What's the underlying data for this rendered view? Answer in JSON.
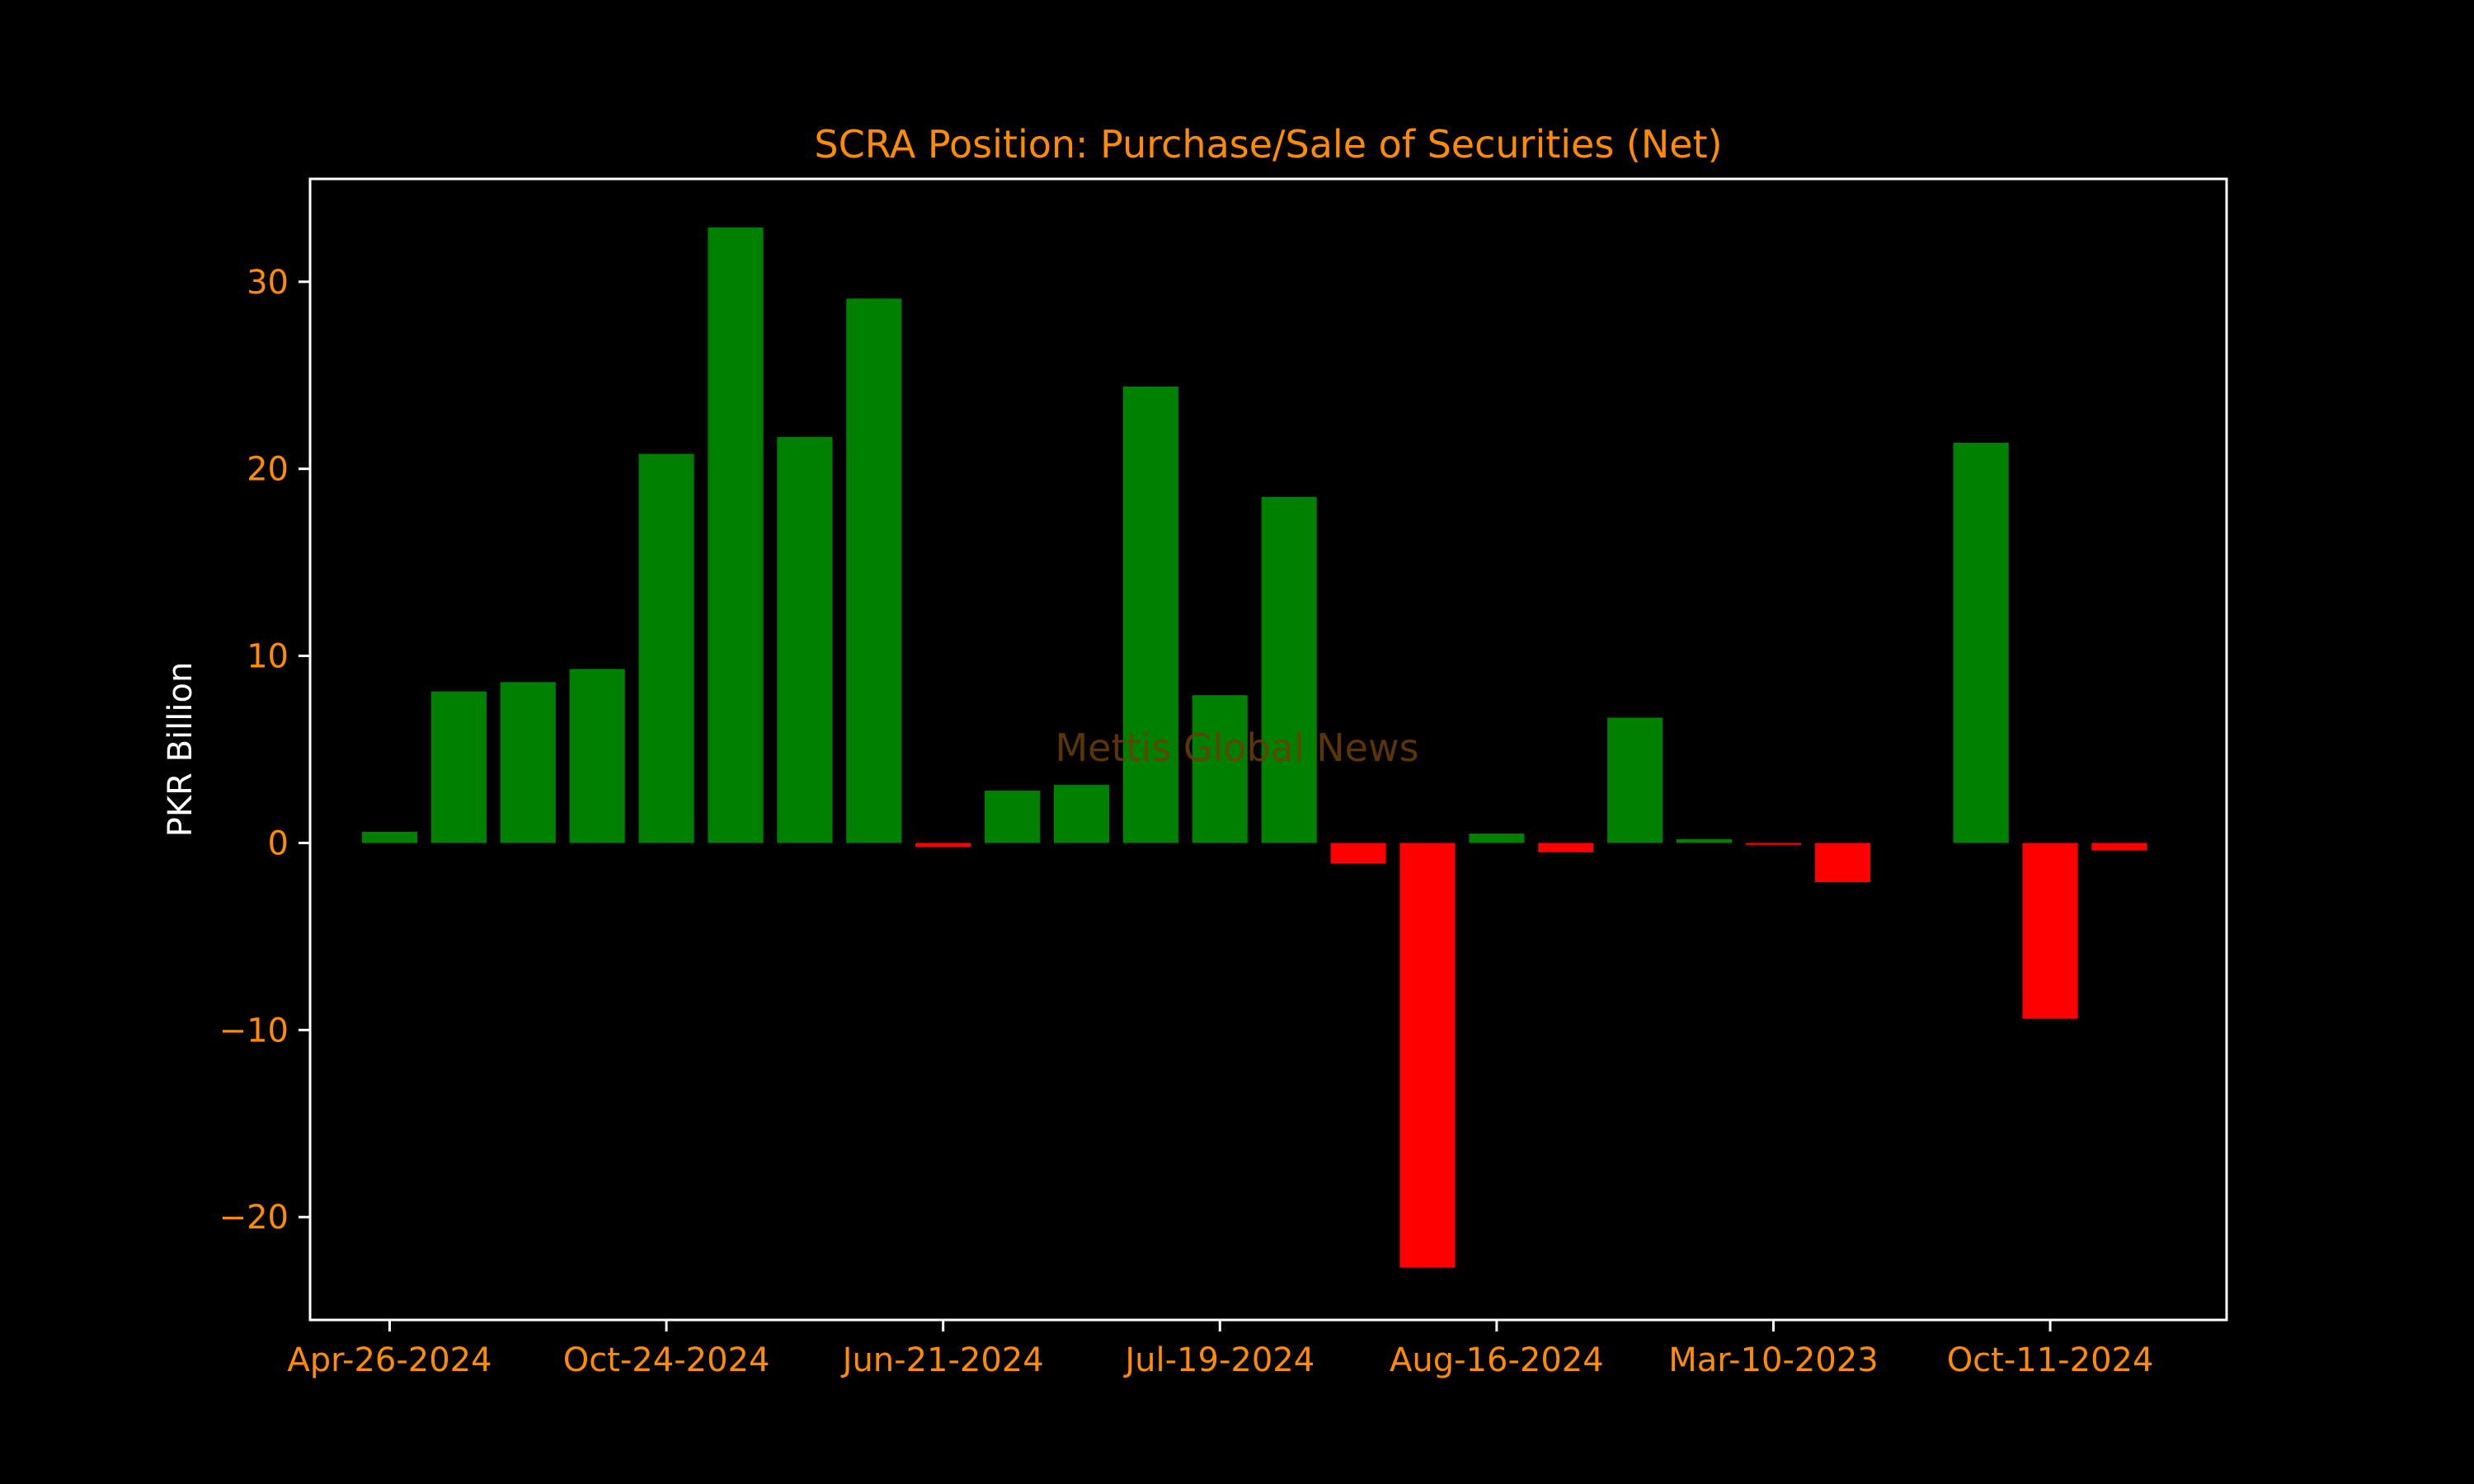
{
  "chart_data": {
    "type": "bar",
    "title": "SCRA Position: Purchase/Sale of Securities (Net)",
    "xlabel": "",
    "ylabel": "PKR Billion",
    "watermark": "Mettis Global News",
    "ylim": [
      -25.5,
      35.5
    ],
    "yticks": [
      -20,
      -10,
      0,
      10,
      20,
      30
    ],
    "ytick_labels": [
      "−20",
      "−10",
      "0",
      "10",
      "20",
      "30"
    ],
    "xtick_labels": [
      "Apr-26-2024",
      "Oct-24-2024",
      "Jun-21-2024",
      "Jul-19-2024",
      "Aug-16-2024",
      "Mar-10-2023",
      "Oct-11-2024"
    ],
    "xtick_positions": [
      0,
      4,
      8,
      12,
      16,
      20,
      24
    ],
    "values": [
      0.6,
      8.1,
      8.6,
      9.3,
      20.8,
      32.9,
      21.7,
      29.1,
      -0.2,
      2.8,
      3.1,
      24.4,
      7.9,
      18.5,
      -1.1,
      -22.7,
      0.5,
      -0.5,
      6.7,
      0.2,
      -0.1,
      -2.1,
      0.0,
      21.4,
      -9.4,
      -0.4
    ],
    "grid": false,
    "colors": {
      "positive": "#008000",
      "negative": "#ff0000",
      "background": "#000000",
      "frame": "#ffffff",
      "title": "#ff8c00",
      "ticks": "#ff8c00",
      "ylabel": "#ffffff",
      "watermark": "#6b3e0a"
    }
  }
}
